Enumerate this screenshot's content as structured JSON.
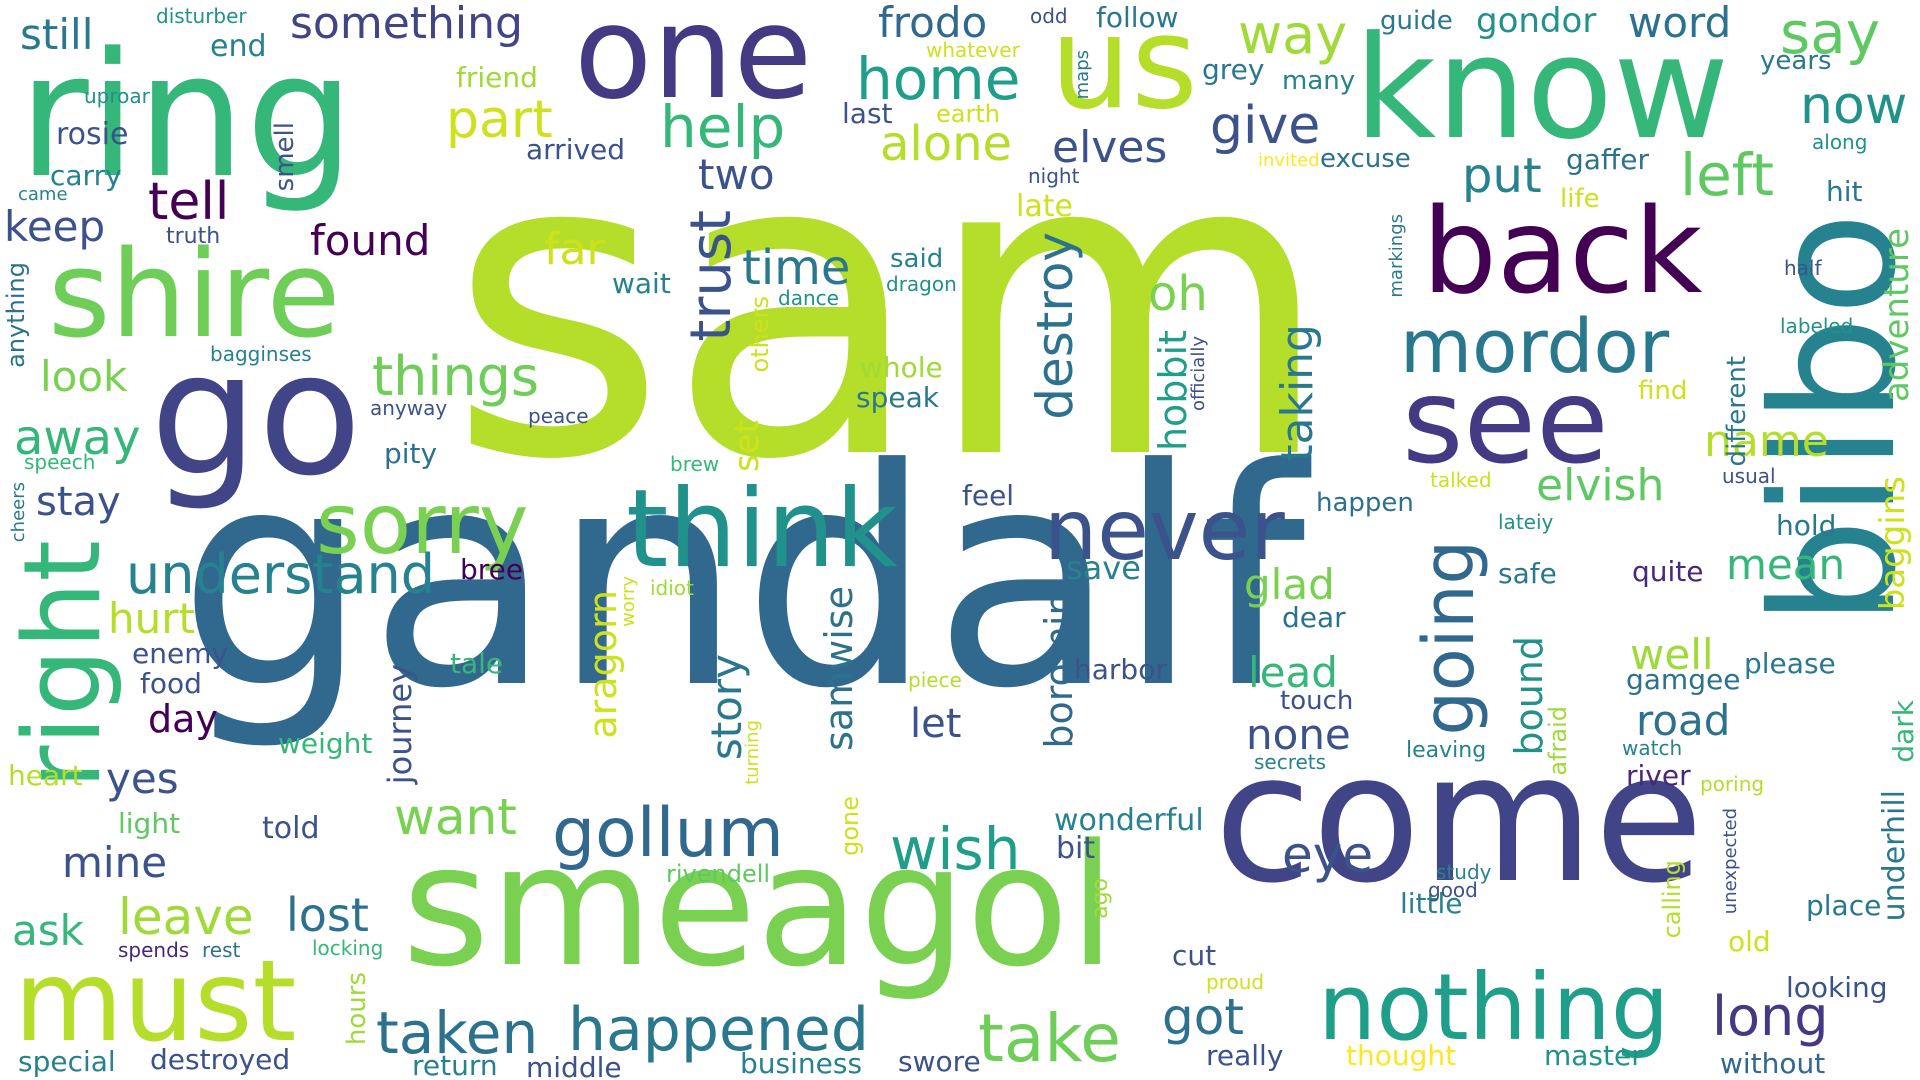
{
  "words": [
    {
      "text": "sam",
      "color": "#b5de2b"
    },
    {
      "text": "gandalf",
      "color": "#31688e"
    },
    {
      "text": "come",
      "color": "#414487"
    },
    {
      "text": "smeagol",
      "color": "#7ad151"
    },
    {
      "text": "bilbo",
      "color": "#26828e"
    },
    {
      "text": "ring",
      "color": "#35b779"
    },
    {
      "text": "know",
      "color": "#35b779"
    },
    {
      "text": "one",
      "color": "#443983"
    },
    {
      "text": "us",
      "color": "#b5de2b"
    },
    {
      "text": "shire",
      "color": "#6ece58"
    },
    {
      "text": "go",
      "color": "#414487"
    },
    {
      "text": "back",
      "color": "#440154"
    },
    {
      "text": "see",
      "color": "#443983"
    },
    {
      "text": "think",
      "color": "#21918c"
    },
    {
      "text": "must",
      "color": "#b5de2b"
    },
    {
      "text": "right",
      "color": "#35b779"
    },
    {
      "text": "nothing",
      "color": "#1f9e89"
    },
    {
      "text": "mordor",
      "color": "#2a788e"
    },
    {
      "text": "never",
      "color": "#3b528b"
    },
    {
      "text": "sorry",
      "color": "#7ad151"
    },
    {
      "text": "gollum",
      "color": "#31688e"
    },
    {
      "text": "happened",
      "color": "#2a788e"
    },
    {
      "text": "taken",
      "color": "#2c728e"
    },
    {
      "text": "take",
      "color": "#6ece58"
    },
    {
      "text": "going",
      "color": "#31688e"
    },
    {
      "text": "understand",
      "color": "#26828e"
    },
    {
      "text": "things",
      "color": "#6ece58"
    },
    {
      "text": "help",
      "color": "#35b779"
    },
    {
      "text": "home",
      "color": "#1f9e89"
    },
    {
      "text": "trust",
      "color": "#3b528b"
    },
    {
      "text": "destroy",
      "color": "#2c728e"
    },
    {
      "text": "wish",
      "color": "#1f9e89"
    },
    {
      "text": "want",
      "color": "#7ad151"
    },
    {
      "text": "leave",
      "color": "#a0da39"
    },
    {
      "text": "lost",
      "color": "#2c728e"
    },
    {
      "text": "long",
      "color": "#443983"
    },
    {
      "text": "got",
      "color": "#2c728e"
    },
    {
      "text": "eye",
      "color": "#3b528b"
    },
    {
      "text": "elvish",
      "color": "#5ec962"
    },
    {
      "text": "name",
      "color": "#b5de2b"
    },
    {
      "text": "taking",
      "color": "#2a788e"
    },
    {
      "text": "tell",
      "color": "#440154"
    },
    {
      "text": "way",
      "color": "#a0da39"
    },
    {
      "text": "say",
      "color": "#5ec962"
    },
    {
      "text": "now",
      "color": "#21918c"
    },
    {
      "text": "left",
      "color": "#5ec962"
    },
    {
      "text": "put",
      "color": "#26828e"
    },
    {
      "text": "give",
      "color": "#3b528b"
    },
    {
      "text": "part",
      "color": "#cde11d"
    },
    {
      "text": "alone",
      "color": "#b5de2b"
    },
    {
      "text": "elves",
      "color": "#3b528b"
    },
    {
      "text": "frodo",
      "color": "#31688e"
    },
    {
      "text": "something",
      "color": "#414487"
    },
    {
      "text": "word",
      "color": "#2c728e"
    },
    {
      "text": "gondor",
      "color": "#21918c"
    },
    {
      "text": "still",
      "color": "#2a788e"
    },
    {
      "text": "two",
      "color": "#3b528b"
    },
    {
      "text": "time",
      "color": "#2a788e"
    },
    {
      "text": "found",
      "color": "#440154"
    },
    {
      "text": "far",
      "color": "#cde11d"
    },
    {
      "text": "oh",
      "color": "#7ad151"
    },
    {
      "text": "look",
      "color": "#7ad151"
    },
    {
      "text": "away",
      "color": "#35b779"
    },
    {
      "text": "stay",
      "color": "#3b528b"
    },
    {
      "text": "keep",
      "color": "#3b528b"
    },
    {
      "text": "hurt",
      "color": "#b5de2b"
    },
    {
      "text": "yes",
      "color": "#3b528b"
    },
    {
      "text": "mine",
      "color": "#3b528b"
    },
    {
      "text": "ask",
      "color": "#35b779"
    },
    {
      "text": "glad",
      "color": "#7ad151"
    },
    {
      "text": "lead",
      "color": "#35b779"
    },
    {
      "text": "none",
      "color": "#3b528b"
    },
    {
      "text": "road",
      "color": "#2c728e"
    },
    {
      "text": "well",
      "color": "#a0da39"
    },
    {
      "text": "mean",
      "color": "#35b779"
    },
    {
      "text": "baggins",
      "color": "#cde11d"
    },
    {
      "text": "adventure",
      "color": "#5ec962"
    },
    {
      "text": "story",
      "color": "#2a788e"
    },
    {
      "text": "aragorn",
      "color": "#cde11d"
    },
    {
      "text": "samwise",
      "color": "#2c728e"
    },
    {
      "text": "boromir",
      "color": "#31688e"
    },
    {
      "text": "hobbit",
      "color": "#1f9e89"
    },
    {
      "text": "bound",
      "color": "#21918c"
    },
    {
      "text": "journey",
      "color": "#3b528b"
    },
    {
      "text": "set",
      "color": "#cde11d"
    },
    {
      "text": "save",
      "color": "#26828e"
    },
    {
      "text": "let",
      "color": "#3b528b"
    },
    {
      "text": "day",
      "color": "#440154"
    },
    {
      "text": "old",
      "color": "#cde11d"
    },
    {
      "text": "place",
      "color": "#2a788e"
    },
    {
      "text": "little",
      "color": "#26828e"
    },
    {
      "text": "cut",
      "color": "#3b528b"
    },
    {
      "text": "really",
      "color": "#3b528b"
    },
    {
      "text": "master",
      "color": "#21918c"
    },
    {
      "text": "thought",
      "color": "#fde725"
    },
    {
      "text": "without",
      "color": "#31688e"
    },
    {
      "text": "looking",
      "color": "#3b528b"
    },
    {
      "text": "underhill",
      "color": "#2a788e"
    },
    {
      "text": "dark",
      "color": "#35b779"
    },
    {
      "text": "hold",
      "color": "#2a788e"
    },
    {
      "text": "quite",
      "color": "#482878"
    },
    {
      "text": "please",
      "color": "#2a788e"
    },
    {
      "text": "gamgee",
      "color": "#2c728e"
    },
    {
      "text": "river",
      "color": "#482878"
    },
    {
      "text": "different",
      "color": "#2a788e"
    },
    {
      "text": "hit",
      "color": "#2a788e"
    },
    {
      "text": "wonderful",
      "color": "#26828e"
    },
    {
      "text": "bit",
      "color": "#3b528b"
    },
    {
      "text": "told",
      "color": "#3b528b"
    },
    {
      "text": "weight",
      "color": "#35b779"
    },
    {
      "text": "heart",
      "color": "#b5de2b"
    },
    {
      "text": "light",
      "color": "#5ec962"
    },
    {
      "text": "food",
      "color": "#3b528b"
    },
    {
      "text": "enemy",
      "color": "#3b528b"
    },
    {
      "text": "speak",
      "color": "#2a788e"
    },
    {
      "text": "whole",
      "color": "#a0da39"
    },
    {
      "text": "pity",
      "color": "#2c728e"
    },
    {
      "text": "feel",
      "color": "#3b528b"
    },
    {
      "text": "happen",
      "color": "#2c728e"
    },
    {
      "text": "excuse",
      "color": "#2c728e"
    },
    {
      "text": "arrived",
      "color": "#3b528b"
    },
    {
      "text": "last",
      "color": "#3b528b"
    },
    {
      "text": "guide",
      "color": "#2a788e"
    },
    {
      "text": "grey",
      "color": "#2a788e"
    },
    {
      "text": "many",
      "color": "#26828e"
    },
    {
      "text": "years",
      "color": "#2a788e"
    },
    {
      "text": "end",
      "color": "#26828e"
    },
    {
      "text": "rosie",
      "color": "#3b528b"
    },
    {
      "text": "carry",
      "color": "#26828e"
    },
    {
      "text": "friend",
      "color": "#a0da39"
    },
    {
      "text": "smell",
      "color": "#3b528b"
    },
    {
      "text": "truth",
      "color": "#3b528b"
    },
    {
      "text": "came",
      "color": "#26828e"
    },
    {
      "text": "uproar",
      "color": "#21918c"
    },
    {
      "text": "disturber",
      "color": "#21918c"
    },
    {
      "text": "follow",
      "color": "#2a788e"
    },
    {
      "text": "odd",
      "color": "#3b528b"
    },
    {
      "text": "whatever",
      "color": "#cde11d"
    },
    {
      "text": "maps",
      "color": "#2a788e"
    },
    {
      "text": "earth",
      "color": "#cde11d"
    },
    {
      "text": "invited",
      "color": "#fde725"
    },
    {
      "text": "gaffer",
      "color": "#2c728e"
    },
    {
      "text": "life",
      "color": "#cde11d"
    },
    {
      "text": "night",
      "color": "#3b528b"
    },
    {
      "text": "late",
      "color": "#cde11d"
    },
    {
      "text": "along",
      "color": "#21918c"
    },
    {
      "text": "said",
      "color": "#26828e"
    },
    {
      "text": "dragon",
      "color": "#21918c"
    },
    {
      "text": "dance",
      "color": "#21918c"
    },
    {
      "text": "wait",
      "color": "#26828e"
    },
    {
      "text": "others",
      "color": "#cde11d"
    },
    {
      "text": "markings",
      "color": "#2a788e"
    },
    {
      "text": "half",
      "color": "#3b528b"
    },
    {
      "text": "labeled",
      "color": "#21918c"
    },
    {
      "text": "find",
      "color": "#cde11d"
    },
    {
      "text": "usual",
      "color": "#3b528b"
    },
    {
      "text": "talked",
      "color": "#cde11d"
    },
    {
      "text": "lateiy",
      "color": "#21918c"
    },
    {
      "text": "safe",
      "color": "#2a788e"
    },
    {
      "text": "dear",
      "color": "#2c728e"
    },
    {
      "text": "touch",
      "color": "#3b528b"
    },
    {
      "text": "harbor",
      "color": "#3b528b"
    },
    {
      "text": "piece",
      "color": "#b5de2b"
    },
    {
      "text": "tale",
      "color": "#35b779"
    },
    {
      "text": "worry",
      "color": "#cde11d"
    },
    {
      "text": "idiot",
      "color": "#a0da39"
    },
    {
      "text": "bree",
      "color": "#440154"
    },
    {
      "text": "turning",
      "color": "#cde11d"
    },
    {
      "text": "gone",
      "color": "#cde11d"
    },
    {
      "text": "rivendell",
      "color": "#5ec962"
    },
    {
      "text": "leaving",
      "color": "#26828e"
    },
    {
      "text": "watch",
      "color": "#26828e"
    },
    {
      "text": "secrets",
      "color": "#26828e"
    },
    {
      "text": "afraid",
      "color": "#a0da39"
    },
    {
      "text": "poring",
      "color": "#b5de2b"
    },
    {
      "text": "study",
      "color": "#26828e"
    },
    {
      "text": "good",
      "color": "#3b528b"
    },
    {
      "text": "unexpected",
      "color": "#3b528b"
    },
    {
      "text": "calling",
      "color": "#b5de2b"
    },
    {
      "text": "ago",
      "color": "#a0da39"
    },
    {
      "text": "proud",
      "color": "#cde11d"
    },
    {
      "text": "business",
      "color": "#26828e"
    },
    {
      "text": "swore",
      "color": "#3b528b"
    },
    {
      "text": "middle",
      "color": "#3b528b"
    },
    {
      "text": "return",
      "color": "#26828e"
    },
    {
      "text": "destroyed",
      "color": "#3b528b"
    },
    {
      "text": "special",
      "color": "#26828e"
    },
    {
      "text": "hours",
      "color": "#a0da39"
    },
    {
      "text": "locking",
      "color": "#35b779"
    },
    {
      "text": "rest",
      "color": "#2c728e"
    },
    {
      "text": "spends",
      "color": "#482878"
    },
    {
      "text": "brew",
      "color": "#35b779"
    },
    {
      "text": "cheers",
      "color": "#2a788e"
    },
    {
      "text": "speech",
      "color": "#35b779"
    },
    {
      "text": "peace",
      "color": "#3b528b"
    },
    {
      "text": "anyway",
      "color": "#3b528b"
    },
    {
      "text": "officially",
      "color": "#3b528b"
    },
    {
      "text": "bagginses",
      "color": "#26828e"
    },
    {
      "text": "anything",
      "color": "#2c728e"
    }
  ]
}
